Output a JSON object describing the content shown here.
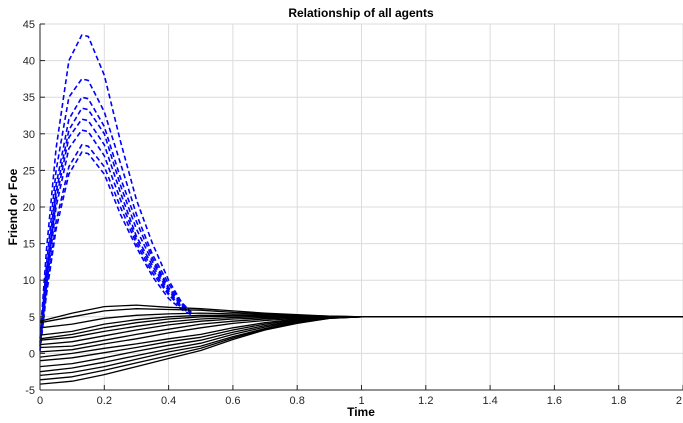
{
  "chart_data": {
    "type": "line",
    "title": "Relationship of all agents",
    "xlabel": "Time",
    "ylabel": "Friend or Foe",
    "xlim": [
      0,
      2
    ],
    "ylim": [
      -5,
      45
    ],
    "xticks": [
      0,
      0.2,
      0.4,
      0.6,
      0.8,
      1,
      1.2,
      1.4,
      1.6,
      1.8,
      2
    ],
    "xtick_labels": [
      "0",
      "0.2",
      "0.4",
      "0.6",
      "0.8",
      "1",
      "1.2",
      "1.4",
      "1.6",
      "1.8",
      "2"
    ],
    "yticks": [
      -5,
      0,
      5,
      10,
      15,
      20,
      25,
      30,
      35,
      40,
      45
    ],
    "ytick_labels": [
      "-5",
      "0",
      "5",
      "10",
      "15",
      "20",
      "25",
      "30",
      "35",
      "40",
      "45"
    ],
    "grid": true,
    "colors": {
      "friend": "#0000ff",
      "agent": "#000000",
      "grid": "#dcdcdc",
      "axis": "#262626"
    },
    "convergence_value": 5,
    "series": [
      {
        "style": "dashed",
        "color": "#0000ff",
        "x": [
          0,
          0.02,
          0.05,
          0.09,
          0.13,
          0.15,
          0.2,
          0.25,
          0.3,
          0.35,
          0.4,
          0.44,
          0.47
        ],
        "y": [
          2,
          14,
          28,
          40,
          43.5,
          43.3,
          38,
          29,
          21,
          15,
          10,
          7,
          5.5
        ]
      },
      {
        "style": "dashed",
        "color": "#0000ff",
        "x": [
          0,
          0.02,
          0.05,
          0.09,
          0.13,
          0.15,
          0.2,
          0.25,
          0.3,
          0.35,
          0.4,
          0.44,
          0.47
        ],
        "y": [
          1.5,
          12,
          25,
          35,
          37.5,
          37.3,
          33,
          26,
          19,
          13.5,
          9.5,
          7,
          5.6
        ]
      },
      {
        "style": "dashed",
        "color": "#0000ff",
        "x": [
          0,
          0.02,
          0.05,
          0.09,
          0.13,
          0.15,
          0.2,
          0.25,
          0.3,
          0.35,
          0.4,
          0.44,
          0.47
        ],
        "y": [
          1,
          11,
          23,
          32,
          35,
          34.8,
          31,
          24,
          18,
          13,
          9,
          6.8,
          5.7
        ]
      },
      {
        "style": "dashed",
        "color": "#0000ff",
        "x": [
          0,
          0.02,
          0.05,
          0.09,
          0.13,
          0.15,
          0.2,
          0.25,
          0.3,
          0.35,
          0.4,
          0.44,
          0.47
        ],
        "y": [
          0.5,
          10,
          22,
          30.5,
          33.5,
          33.3,
          30,
          23,
          17,
          12.5,
          8.8,
          6.7,
          5.6
        ]
      },
      {
        "style": "dashed",
        "color": "#0000ff",
        "x": [
          0,
          0.02,
          0.05,
          0.09,
          0.13,
          0.15,
          0.2,
          0.25,
          0.3,
          0.35,
          0.4,
          0.44,
          0.47
        ],
        "y": [
          1.2,
          9.5,
          21,
          29.5,
          32,
          31.8,
          28.5,
          22,
          16,
          12,
          8.5,
          6.5,
          5.5
        ]
      },
      {
        "style": "dashed",
        "color": "#0000ff",
        "x": [
          0,
          0.02,
          0.05,
          0.09,
          0.13,
          0.15,
          0.2,
          0.25,
          0.3,
          0.35,
          0.4,
          0.44,
          0.47
        ],
        "y": [
          0.8,
          9,
          20,
          28,
          30.5,
          30.3,
          27,
          21,
          15.5,
          11.5,
          8.2,
          6.4,
          5.5
        ]
      },
      {
        "style": "dashed",
        "color": "#0000ff",
        "x": [
          0,
          0.02,
          0.05,
          0.09,
          0.13,
          0.15,
          0.2,
          0.25,
          0.3,
          0.35,
          0.4,
          0.44,
          0.47
        ],
        "y": [
          0.3,
          8,
          18,
          25.5,
          28.5,
          28.3,
          25.5,
          20,
          15,
          11,
          8,
          6.2,
          5.4
        ]
      },
      {
        "style": "dashed",
        "color": "#0000ff",
        "x": [
          0,
          0.02,
          0.05,
          0.09,
          0.13,
          0.15,
          0.2,
          0.25,
          0.3,
          0.35,
          0.4,
          0.44,
          0.47
        ],
        "y": [
          1.5,
          8,
          17,
          24.5,
          27.5,
          27.3,
          24.5,
          19,
          14.5,
          10.5,
          7.5,
          6,
          5.3
        ]
      },
      {
        "style": "solid",
        "color": "#000000",
        "x": [
          0,
          0.1,
          0.2,
          0.3,
          0.4,
          0.5,
          0.6,
          0.7,
          0.8,
          0.9,
          1,
          1.2,
          2
        ],
        "y": [
          4.4,
          5.5,
          6.4,
          6.6,
          6.3,
          6.1,
          5.8,
          5.5,
          5.3,
          5.1,
          5.0,
          5,
          5
        ]
      },
      {
        "style": "solid",
        "color": "#000000",
        "x": [
          0,
          0.1,
          0.2,
          0.3,
          0.4,
          0.5,
          0.6,
          0.7,
          0.8,
          0.9,
          1,
          1.2,
          2
        ],
        "y": [
          4.2,
          5.0,
          5.8,
          6.1,
          6.0,
          5.9,
          5.6,
          5.4,
          5.2,
          5.1,
          5.0,
          5,
          5
        ]
      },
      {
        "style": "solid",
        "color": "#000000",
        "x": [
          0,
          0.1,
          0.2,
          0.3,
          0.4,
          0.5,
          0.6,
          0.7,
          0.8,
          0.9,
          1,
          1.2,
          2
        ],
        "y": [
          3.5,
          4.0,
          4.8,
          5.2,
          5.4,
          5.5,
          5.4,
          5.3,
          5.15,
          5.05,
          5.0,
          5,
          5
        ]
      },
      {
        "style": "solid",
        "color": "#000000",
        "x": [
          0,
          0.1,
          0.2,
          0.3,
          0.4,
          0.5,
          0.6,
          0.7,
          0.8,
          0.9,
          1,
          1.2,
          2
        ],
        "y": [
          2.5,
          3.0,
          4.0,
          4.6,
          5.0,
          5.2,
          5.2,
          5.15,
          5.1,
          5.05,
          5.0,
          5,
          5
        ]
      },
      {
        "style": "solid",
        "color": "#000000",
        "x": [
          0,
          0.1,
          0.2,
          0.3,
          0.4,
          0.5,
          0.6,
          0.7,
          0.8,
          0.9,
          1,
          1.2,
          2
        ],
        "y": [
          2.0,
          2.6,
          3.5,
          4.2,
          4.7,
          5.0,
          5.1,
          5.1,
          5.05,
          5.02,
          5.0,
          5,
          5
        ]
      },
      {
        "style": "solid",
        "color": "#000000",
        "x": [
          0,
          0.1,
          0.2,
          0.3,
          0.4,
          0.5,
          0.6,
          0.7,
          0.8,
          0.9,
          1,
          1.2,
          2
        ],
        "y": [
          1.8,
          2.2,
          3.0,
          3.7,
          4.3,
          4.7,
          4.9,
          5.0,
          5.0,
          5.0,
          5.0,
          5,
          5
        ]
      },
      {
        "style": "solid",
        "color": "#000000",
        "x": [
          0,
          0.1,
          0.2,
          0.3,
          0.4,
          0.5,
          0.6,
          0.7,
          0.8,
          0.9,
          1,
          1.2,
          2
        ],
        "y": [
          1.2,
          1.6,
          2.4,
          3.2,
          3.9,
          4.4,
          4.7,
          4.85,
          4.95,
          5.0,
          5.0,
          5,
          5
        ]
      },
      {
        "style": "solid",
        "color": "#000000",
        "x": [
          0,
          0.1,
          0.2,
          0.3,
          0.4,
          0.5,
          0.6,
          0.7,
          0.8,
          0.9,
          1,
          1.2,
          2
        ],
        "y": [
          0.8,
          1.0,
          1.8,
          2.6,
          3.3,
          4.0,
          4.4,
          4.7,
          4.9,
          4.97,
          5.0,
          5,
          5
        ]
      },
      {
        "style": "solid",
        "color": "#000000",
        "x": [
          0,
          0.1,
          0.2,
          0.3,
          0.4,
          0.5,
          0.6,
          0.7,
          0.8,
          0.9,
          1,
          1.2,
          2
        ],
        "y": [
          0.2,
          0.5,
          1.3,
          2.0,
          2.8,
          3.5,
          4.1,
          4.5,
          4.8,
          4.95,
          5.0,
          5,
          5
        ]
      },
      {
        "style": "solid",
        "color": "#000000",
        "x": [
          0,
          0.1,
          0.2,
          0.3,
          0.4,
          0.5,
          0.6,
          0.7,
          0.8,
          0.9,
          1,
          1.2,
          2
        ],
        "y": [
          -0.5,
          0.0,
          0.7,
          1.3,
          2.0,
          2.6,
          3.5,
          4.2,
          4.7,
          4.93,
          5.0,
          5,
          5
        ]
      },
      {
        "style": "solid",
        "color": "#000000",
        "x": [
          0,
          0.1,
          0.2,
          0.3,
          0.4,
          0.5,
          0.6,
          0.7,
          0.8,
          0.9,
          1,
          1.2,
          2
        ],
        "y": [
          -1.0,
          -0.6,
          0.1,
          0.8,
          1.6,
          2.2,
          3.2,
          4.0,
          4.6,
          4.9,
          5.0,
          5,
          5
        ]
      },
      {
        "style": "solid",
        "color": "#000000",
        "x": [
          0,
          0.1,
          0.2,
          0.3,
          0.4,
          0.5,
          0.6,
          0.7,
          0.8,
          0.9,
          1,
          1.2,
          2
        ],
        "y": [
          -1.8,
          -1.4,
          -0.6,
          0.3,
          1.1,
          1.8,
          2.9,
          3.8,
          4.5,
          4.88,
          5.0,
          5,
          5
        ]
      },
      {
        "style": "solid",
        "color": "#000000",
        "x": [
          0,
          0.1,
          0.2,
          0.3,
          0.4,
          0.5,
          0.6,
          0.7,
          0.8,
          0.9,
          1,
          1.2,
          2
        ],
        "y": [
          -2.5,
          -2.0,
          -1.2,
          -0.3,
          0.6,
          1.4,
          2.6,
          3.6,
          4.4,
          4.85,
          5.0,
          5,
          5
        ]
      },
      {
        "style": "solid",
        "color": "#000000",
        "x": [
          0,
          0.1,
          0.2,
          0.3,
          0.4,
          0.5,
          0.6,
          0.7,
          0.8,
          0.9,
          1,
          1.2,
          2
        ],
        "y": [
          -3.0,
          -2.6,
          -1.8,
          -0.8,
          0.2,
          1.0,
          2.3,
          3.4,
          4.3,
          4.82,
          5.0,
          5,
          5
        ]
      },
      {
        "style": "solid",
        "color": "#000000",
        "x": [
          0,
          0.1,
          0.2,
          0.3,
          0.4,
          0.5,
          0.6,
          0.7,
          0.8,
          0.9,
          1,
          1.2,
          2
        ],
        "y": [
          -3.6,
          -3.2,
          -2.3,
          -1.3,
          -0.3,
          0.7,
          2.1,
          3.3,
          4.2,
          4.8,
          5.0,
          5,
          5
        ]
      },
      {
        "style": "solid",
        "color": "#000000",
        "x": [
          0,
          0.1,
          0.2,
          0.3,
          0.4,
          0.5,
          0.6,
          0.7,
          0.8,
          0.9,
          1,
          1.2,
          2
        ],
        "y": [
          -4.2,
          -3.8,
          -2.9,
          -1.8,
          -0.7,
          0.4,
          1.9,
          3.2,
          4.1,
          4.78,
          5.0,
          5,
          5
        ]
      }
    ]
  }
}
